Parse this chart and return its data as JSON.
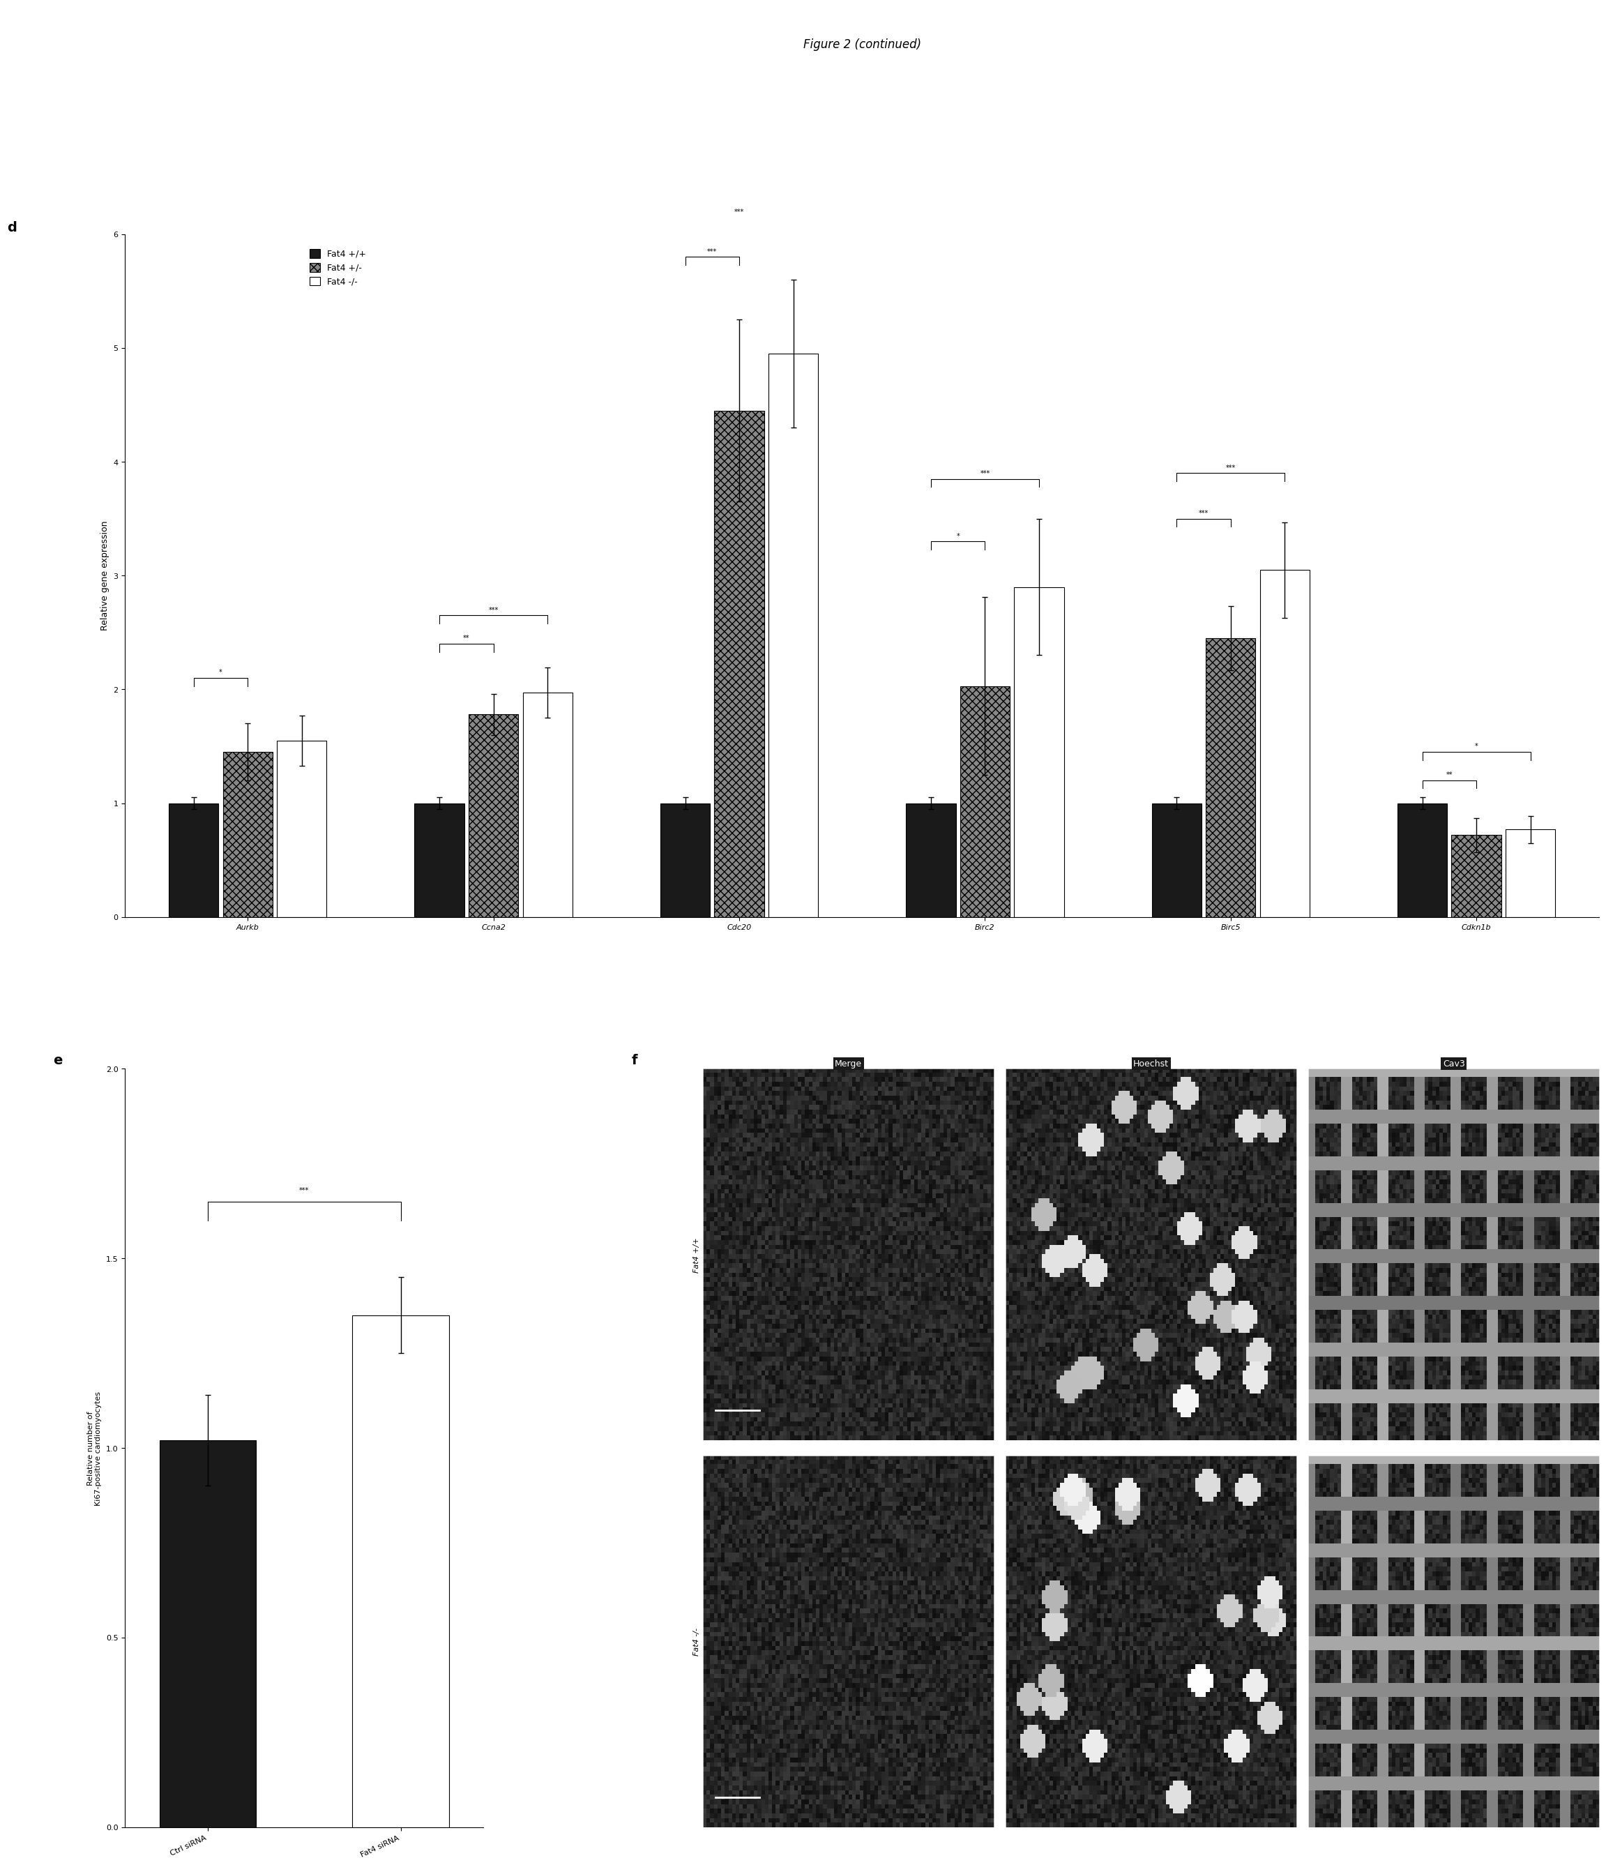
{
  "figure_title": "Figure 2 (continued)",
  "panel_d": {
    "label": "d",
    "ylabel": "Relative gene expression",
    "ylim": [
      0,
      6
    ],
    "yticks": [
      0,
      1,
      2,
      3,
      4,
      5,
      6
    ],
    "groups": [
      "Aurkb",
      "Ccna2",
      "Cdc20",
      "Birc2",
      "Birc5",
      "Cdkn1b"
    ],
    "legend_labels": [
      "Fat4 +/+",
      "Fat4 +/-",
      "Fat4 -/-"
    ],
    "bar_colors": [
      "#1a1a1a",
      "#888888",
      "#ffffff"
    ],
    "bar_edgecolors": [
      "#000000",
      "#000000",
      "#000000"
    ],
    "bar_hatch": [
      null,
      "xxx",
      null
    ],
    "values": {
      "Aurkb": [
        1.0,
        1.45,
        1.55
      ],
      "Ccna2": [
        1.0,
        1.78,
        1.97
      ],
      "Cdc20": [
        1.0,
        4.45,
        4.95
      ],
      "Birc2": [
        1.0,
        2.03,
        2.9
      ],
      "Birc5": [
        1.0,
        2.45,
        3.05
      ],
      "Cdkn1b": [
        1.0,
        0.72,
        0.77
      ]
    },
    "errors": {
      "Aurkb": [
        0.05,
        0.25,
        0.22
      ],
      "Ccna2": [
        0.05,
        0.18,
        0.22
      ],
      "Cdc20": [
        0.05,
        0.8,
        0.65
      ],
      "Birc2": [
        0.05,
        0.78,
        0.6
      ],
      "Birc5": [
        0.05,
        0.28,
        0.42
      ],
      "Cdkn1b": [
        0.05,
        0.15,
        0.12
      ]
    },
    "significance": {
      "Aurkb": [
        {
          "from": 0,
          "to": 1,
          "text": "*",
          "y": 2.1
        }
      ],
      "Ccna2": [
        {
          "from": 0,
          "to": 1,
          "text": "**",
          "y": 2.4
        },
        {
          "from": 0,
          "to": 2,
          "text": "***",
          "y": 2.65
        }
      ],
      "Cdc20": [
        {
          "from": 0,
          "to": 1,
          "text": "***",
          "y": 5.8
        },
        {
          "from": 0,
          "to": 2,
          "text": "***",
          "y": 6.15
        }
      ],
      "Birc2": [
        {
          "from": 0,
          "to": 1,
          "text": "*",
          "y": 3.3
        },
        {
          "from": 0,
          "to": 2,
          "text": "***",
          "y": 3.85
        }
      ],
      "Birc5": [
        {
          "from": 0,
          "to": 1,
          "text": "***",
          "y": 3.5
        },
        {
          "from": 0,
          "to": 2,
          "text": "***",
          "y": 3.9
        }
      ],
      "Cdkn1b": [
        {
          "from": 0,
          "to": 1,
          "text": "**",
          "y": 1.2
        },
        {
          "from": 0,
          "to": 2,
          "text": "*",
          "y": 1.45
        }
      ]
    }
  },
  "panel_e": {
    "label": "e",
    "ylabel": "Relative number of\nKi67-positive cardiomyocytes",
    "ylim": [
      0,
      2
    ],
    "yticks": [
      0,
      0.5,
      1,
      1.5,
      2
    ],
    "categories": [
      "Ctrl siRNA",
      "Fat4 siRNA"
    ],
    "values": [
      1.02,
      1.35
    ],
    "errors": [
      0.12,
      0.1
    ],
    "bar_colors": [
      "#1a1a1a",
      "#ffffff"
    ],
    "bar_edgecolors": [
      "#000000",
      "#000000"
    ],
    "significance": [
      {
        "from": 0,
        "to": 1,
        "text": "***",
        "y": 1.65
      }
    ]
  },
  "panel_f": {
    "label": "f",
    "col_labels": [
      "Merge",
      "Hoechst",
      "Cav3"
    ],
    "row_labels": [
      "Fat4 +/+",
      "Fat4 -/-"
    ],
    "bg_color": "#1a1a1a"
  },
  "background_color": "#ffffff",
  "title_fontsize": 12,
  "axis_fontsize": 9,
  "tick_fontsize": 8,
  "label_fontsize": 14
}
